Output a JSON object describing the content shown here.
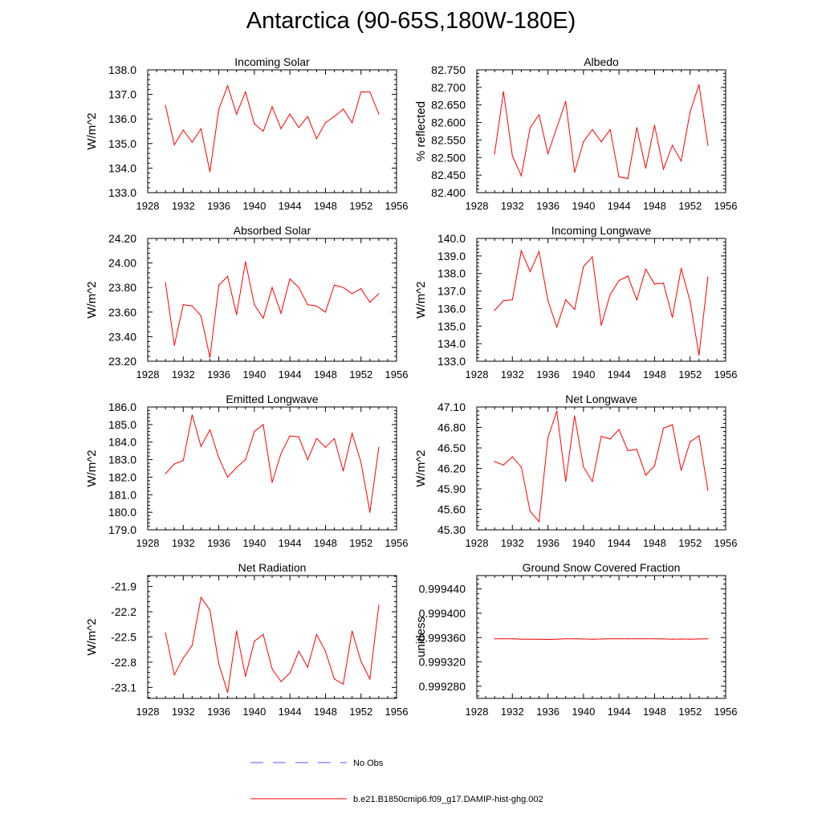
{
  "title": "Antarctica (90-65S,180W-180E)",
  "colors": {
    "model": "#ff0000",
    "obs": "#5050ff",
    "axis": "#000000"
  },
  "legend": {
    "obs_label": "No Obs",
    "model_label": "b.e21.B1850cmip6.f09_g17.DAMIP-hist-ghg.002"
  },
  "chart_data": [
    {
      "type": "line",
      "title": "Incoming Solar",
      "ylabel": "W/m^2",
      "xlim": [
        1928,
        1956
      ],
      "xticks": [
        "1928",
        "1932",
        "1936",
        "1940",
        "1944",
        "1948",
        "1952",
        "1956"
      ],
      "ylim": [
        133.0,
        138.0
      ],
      "yticks": [
        "133.0",
        "134.0",
        "135.0",
        "136.0",
        "137.0",
        "138.0"
      ],
      "series": [
        {
          "x": [
            1930,
            1931,
            1932,
            1933,
            1934,
            1935,
            1936,
            1937,
            1938,
            1939,
            1940,
            1941,
            1942,
            1943,
            1944,
            1945,
            1946,
            1947,
            1948,
            1949,
            1950,
            1951,
            1952,
            1953,
            1954
          ],
          "values": [
            136.55,
            134.95,
            135.55,
            135.05,
            135.6,
            133.85,
            136.4,
            137.35,
            136.2,
            137.1,
            135.8,
            135.5,
            136.5,
            135.6,
            136.2,
            135.65,
            136.1,
            135.2,
            135.85,
            136.1,
            136.4,
            135.85,
            137.1,
            137.1,
            136.2
          ]
        }
      ]
    },
    {
      "type": "line",
      "title": "Albedo",
      "ylabel": "% reflected",
      "xlim": [
        1928,
        1956
      ],
      "xticks": [
        "1928",
        "1932",
        "1936",
        "1940",
        "1944",
        "1948",
        "1952",
        "1956"
      ],
      "ylim": [
        82.4,
        82.75
      ],
      "yticks": [
        "82.400",
        "82.450",
        "82.500",
        "82.550",
        "82.600",
        "82.650",
        "82.700",
        "82.750"
      ],
      "series": [
        {
          "x": [
            1930,
            1931,
            1932,
            1933,
            1934,
            1935,
            1936,
            1937,
            1938,
            1939,
            1940,
            1941,
            1942,
            1943,
            1944,
            1945,
            1946,
            1947,
            1948,
            1949,
            1950,
            1951,
            1952,
            1953,
            1954
          ],
          "values": [
            82.51,
            82.688,
            82.505,
            82.448,
            82.585,
            82.622,
            82.511,
            82.585,
            82.66,
            82.458,
            82.545,
            82.58,
            82.545,
            82.58,
            82.445,
            82.44,
            82.585,
            82.47,
            82.592,
            82.467,
            82.535,
            82.49,
            82.63,
            82.708,
            82.535
          ]
        }
      ]
    },
    {
      "type": "line",
      "title": "Absorbed Solar",
      "ylabel": "W/m^2",
      "xlim": [
        1928,
        1956
      ],
      "xticks": [
        "1928",
        "1932",
        "1936",
        "1940",
        "1944",
        "1948",
        "1952",
        "1956"
      ],
      "ylim": [
        23.2,
        24.2
      ],
      "yticks": [
        "23.20",
        "23.40",
        "23.60",
        "23.80",
        "24.00",
        "24.20"
      ],
      "series": [
        {
          "x": [
            1930,
            1931,
            1932,
            1933,
            1934,
            1935,
            1936,
            1937,
            1938,
            1939,
            1940,
            1941,
            1942,
            1943,
            1944,
            1945,
            1946,
            1947,
            1948,
            1949,
            1950,
            1951,
            1952,
            1953,
            1954
          ],
          "values": [
            23.84,
            23.33,
            23.66,
            23.65,
            23.57,
            23.23,
            23.82,
            23.89,
            23.58,
            24.01,
            23.66,
            23.55,
            23.8,
            23.59,
            23.87,
            23.8,
            23.66,
            23.65,
            23.6,
            23.82,
            23.8,
            23.75,
            23.79,
            23.68,
            23.75
          ]
        }
      ]
    },
    {
      "type": "line",
      "title": "Incoming Longwave",
      "ylabel": "W/m^2",
      "xlim": [
        1928,
        1956
      ],
      "xticks": [
        "1928",
        "1932",
        "1936",
        "1940",
        "1944",
        "1948",
        "1952",
        "1956"
      ],
      "ylim": [
        133.0,
        140.0
      ],
      "yticks": [
        "133.0",
        "134.0",
        "135.0",
        "136.0",
        "137.0",
        "138.0",
        "139.0",
        "140.0"
      ],
      "series": [
        {
          "x": [
            1930,
            1931,
            1932,
            1933,
            1934,
            1935,
            1936,
            1937,
            1938,
            1939,
            1940,
            1941,
            1942,
            1943,
            1944,
            1945,
            1946,
            1947,
            1948,
            1949,
            1950,
            1951,
            1952,
            1953,
            1954
          ],
          "values": [
            135.9,
            136.45,
            136.5,
            139.3,
            138.1,
            139.25,
            136.45,
            134.95,
            136.5,
            135.95,
            138.4,
            138.95,
            135.05,
            136.8,
            137.6,
            137.85,
            136.5,
            138.25,
            137.4,
            137.45,
            135.5,
            138.3,
            136.4,
            133.35,
            137.8
          ]
        }
      ]
    },
    {
      "type": "line",
      "title": "Emitted Longwave",
      "ylabel": "W/m^2",
      "xlim": [
        1928,
        1956
      ],
      "xticks": [
        "1928",
        "1932",
        "1936",
        "1940",
        "1944",
        "1948",
        "1952",
        "1956"
      ],
      "ylim": [
        179.0,
        186.0
      ],
      "yticks": [
        "179.0",
        "180.0",
        "181.0",
        "182.0",
        "183.0",
        "184.0",
        "185.0",
        "186.0"
      ],
      "series": [
        {
          "x": [
            1930,
            1931,
            1932,
            1933,
            1934,
            1935,
            1936,
            1937,
            1938,
            1939,
            1940,
            1941,
            1942,
            1943,
            1944,
            1945,
            1946,
            1947,
            1948,
            1949,
            1950,
            1951,
            1952,
            1953,
            1954
          ],
          "values": [
            182.2,
            182.75,
            182.95,
            185.55,
            183.75,
            184.7,
            183.1,
            182.0,
            182.55,
            183.0,
            184.6,
            185.0,
            181.7,
            183.35,
            184.35,
            184.3,
            183.0,
            184.2,
            183.7,
            184.2,
            182.35,
            184.5,
            182.85,
            180.0,
            183.7
          ]
        }
      ]
    },
    {
      "type": "line",
      "title": "Net Longwave",
      "ylabel": "W/m^2",
      "xlim": [
        1928,
        1956
      ],
      "xticks": [
        "1928",
        "1932",
        "1936",
        "1940",
        "1944",
        "1948",
        "1952",
        "1956"
      ],
      "ylim": [
        45.3,
        47.1
      ],
      "yticks": [
        "45.30",
        "45.60",
        "45.90",
        "46.20",
        "46.50",
        "46.80",
        "47.10"
      ],
      "series": [
        {
          "x": [
            1930,
            1931,
            1932,
            1933,
            1934,
            1935,
            1936,
            1937,
            1938,
            1939,
            1940,
            1941,
            1942,
            1943,
            1944,
            1945,
            1946,
            1947,
            1948,
            1949,
            1950,
            1951,
            1952,
            1953,
            1954
          ],
          "values": [
            46.3,
            46.25,
            46.37,
            46.22,
            45.57,
            45.42,
            46.65,
            47.04,
            46.01,
            46.97,
            46.22,
            46.01,
            46.67,
            46.63,
            46.77,
            46.46,
            46.48,
            46.1,
            46.24,
            46.79,
            46.84,
            46.17,
            46.59,
            46.68,
            45.88
          ]
        }
      ]
    },
    {
      "type": "line",
      "title": "Net Radiation",
      "ylabel": "W/m^2",
      "xlim": [
        1928,
        1956
      ],
      "xticks": [
        "1928",
        "1932",
        "1936",
        "1940",
        "1944",
        "1948",
        "1952",
        "1956"
      ],
      "ylim": [
        -23.23,
        -21.77
      ],
      "yticks": [
        "-23.1",
        "-22.8",
        "-22.5",
        "-22.2",
        "-21.9"
      ],
      "series": [
        {
          "x": [
            1930,
            1931,
            1932,
            1933,
            1934,
            1935,
            1936,
            1937,
            1938,
            1939,
            1940,
            1941,
            1942,
            1943,
            1944,
            1945,
            1946,
            1947,
            1948,
            1949,
            1950,
            1951,
            1952,
            1953,
            1954
          ],
          "values": [
            -22.45,
            -22.95,
            -22.75,
            -22.6,
            -22.03,
            -22.18,
            -22.82,
            -23.16,
            -22.43,
            -22.97,
            -22.55,
            -22.47,
            -22.88,
            -23.03,
            -22.93,
            -22.67,
            -22.86,
            -22.47,
            -22.67,
            -23.0,
            -23.06,
            -22.43,
            -22.79,
            -23.0,
            -22.12
          ]
        }
      ]
    },
    {
      "type": "line",
      "title": "Ground Snow Covered Fraction",
      "ylabel": "unitless",
      "xlim": [
        1928,
        1956
      ],
      "xticks": [
        "1928",
        "1932",
        "1936",
        "1940",
        "1944",
        "1948",
        "1952",
        "1956"
      ],
      "ylim": [
        0.99926,
        0.999462
      ],
      "yticks": [
        "0.999280",
        "0.999320",
        "0.999360",
        "0.999400",
        "0.999440"
      ],
      "series": [
        {
          "x": [
            1930,
            1931,
            1932,
            1933,
            1934,
            1935,
            1936,
            1937,
            1938,
            1939,
            1940,
            1941,
            1942,
            1943,
            1944,
            1945,
            1946,
            1947,
            1948,
            1949,
            1950,
            1951,
            1952,
            1953,
            1954
          ],
          "values": [
            0.999358,
            0.999358,
            0.999358,
            0.9993575,
            0.9993573,
            0.9993572,
            0.999357,
            0.9993575,
            0.999358,
            0.999358,
            0.9993577,
            0.9993575,
            0.9993577,
            0.999358,
            0.999358,
            0.999358,
            0.999358,
            0.999358,
            0.999358,
            0.9993578,
            0.9993575,
            0.9993577,
            0.9993575,
            0.9993577,
            0.999358
          ]
        }
      ]
    }
  ]
}
